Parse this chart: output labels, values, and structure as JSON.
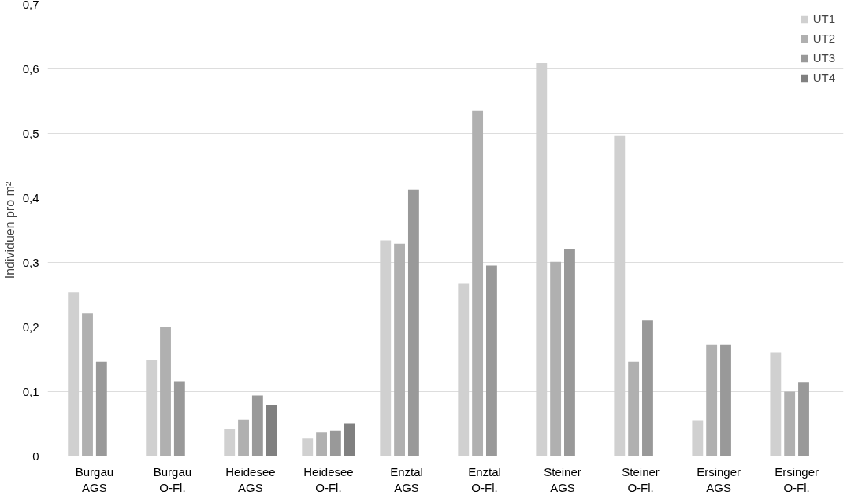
{
  "chart_data": {
    "type": "bar",
    "ylabel": "Individuen pro m²",
    "categories": [
      "Burgau\nAGS",
      "Burgau\nO-Fl.",
      "Heidesee\nAGS",
      "Heidesee\nO-Fl.",
      "Enztal\nAGS",
      "Enztal\nO-Fl.",
      "Steiner\nAGS",
      "Steiner\nO-Fl.",
      "Ersinger\nAGS",
      "Ersinger\nO-Fl."
    ],
    "series": [
      {
        "name": "UT1",
        "color": "#d0d0d0",
        "values": [
          0.254,
          0.149,
          0.042,
          0.027,
          0.334,
          0.267,
          0.609,
          0.496,
          0.055,
          0.161
        ]
      },
      {
        "name": "UT2",
        "color": "#b0b0b0",
        "values": [
          0.221,
          0.2,
          0.057,
          0.037,
          0.329,
          0.535,
          0.301,
          0.146,
          0.173,
          0.1
        ]
      },
      {
        "name": "UT3",
        "color": "#999999",
        "values": [
          0.146,
          0.116,
          0.094,
          0.04,
          0.413,
          0.295,
          0.321,
          0.21,
          0.173,
          0.115
        ]
      },
      {
        "name": "UT4",
        "color": "#808080",
        "values": [
          null,
          null,
          0.079,
          0.05,
          null,
          null,
          null,
          null,
          null,
          null
        ]
      }
    ],
    "ylim": [
      0,
      0.7
    ],
    "yticks": [
      {
        "value": 0,
        "label": "0"
      },
      {
        "value": 0.1,
        "label": "0,1"
      },
      {
        "value": 0.2,
        "label": "0,2"
      },
      {
        "value": 0.3,
        "label": "0,3"
      },
      {
        "value": 0.4,
        "label": "0,4"
      },
      {
        "value": 0.5,
        "label": "0,5"
      },
      {
        "value": 0.6,
        "label": "0,6"
      },
      {
        "value": 0.7,
        "label": "0,7"
      }
    ],
    "grid": "y",
    "legend": "top right"
  }
}
